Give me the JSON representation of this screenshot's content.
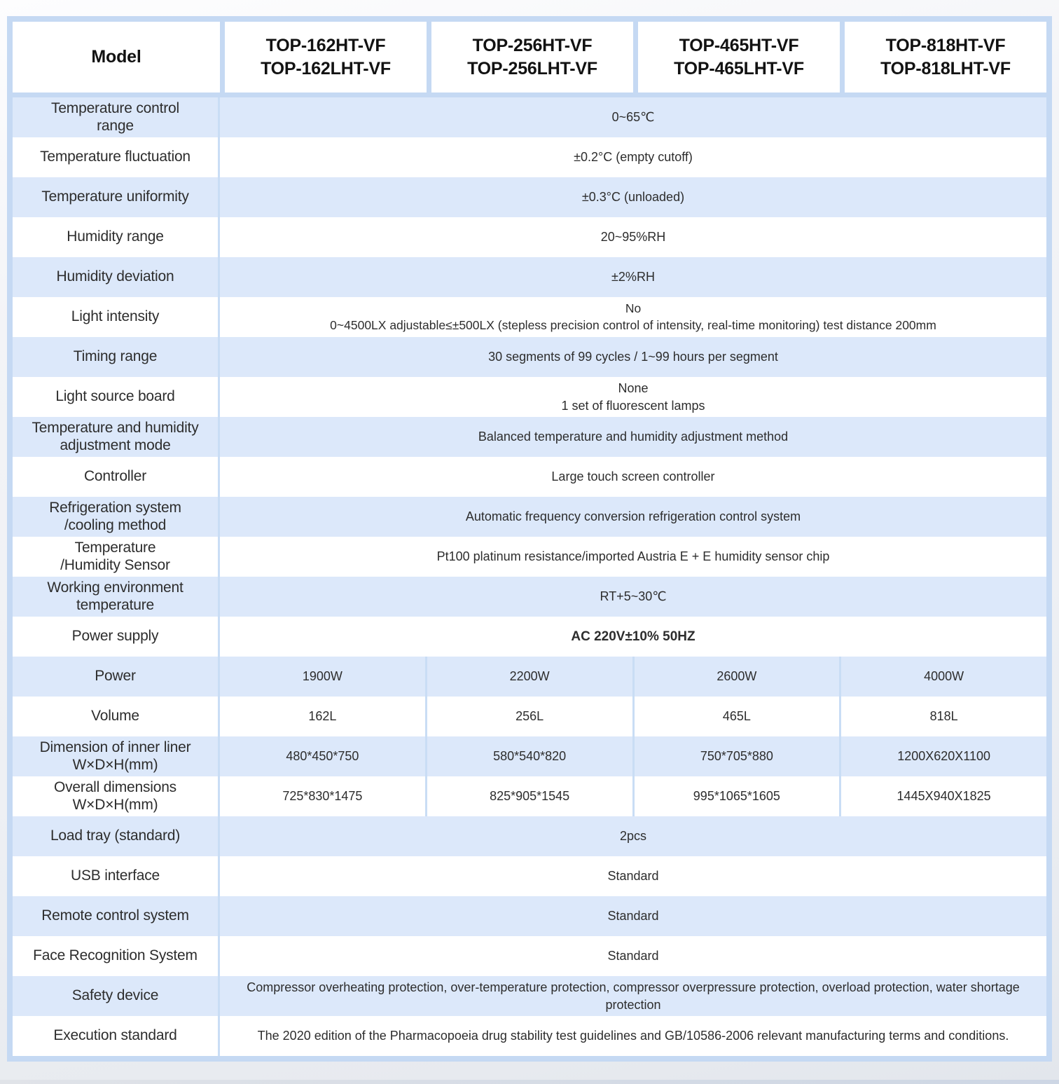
{
  "colors": {
    "frame_blue": "#c5d9f3",
    "row_blue": "#dce8fa",
    "separator_blue": "#c9ddf5",
    "cell_white": "#ffffff",
    "text_dark": "#2d2d2d"
  },
  "table": {
    "header": {
      "model_label": "Model",
      "models": [
        "TOP-162HT-VF\nTOP-162LHT-VF",
        "TOP-256HT-VF\nTOP-256LHT-VF",
        "TOP-465HT-VF\nTOP-465LHT-VF",
        "TOP-818HT-VF\nTOP-818LHT-VF"
      ]
    },
    "rows": [
      {
        "label": "Temperature control\nrange",
        "value": "0~65℃"
      },
      {
        "label": "Temperature fluctuation",
        "value": "±0.2°C (empty cutoff)"
      },
      {
        "label": "Temperature uniformity",
        "value": "±0.3°C (unloaded)"
      },
      {
        "label": "Humidity range",
        "value": "20~95%RH"
      },
      {
        "label": "Humidity deviation",
        "value": "±2%RH"
      },
      {
        "label": "Light intensity",
        "value": "No\n0~4500LX adjustable≤±500LX (stepless precision control of intensity, real-time monitoring) test distance 200mm"
      },
      {
        "label": "Timing range",
        "value": "30 segments of 99 cycles / 1~99 hours per segment"
      },
      {
        "label": "Light source board",
        "value": "None\n1 set of fluorescent lamps"
      },
      {
        "label": "Temperature and humidity\nadjustment mode",
        "value": "Balanced temperature and humidity adjustment method"
      },
      {
        "label": "Controller",
        "value": "Large touch screen controller"
      },
      {
        "label": "Refrigeration system\n/cooling method",
        "value": "Automatic frequency conversion refrigeration control system"
      },
      {
        "label": "Temperature\n/Humidity Sensor",
        "value": "Pt100 platinum resistance/imported Austria E + E humidity sensor chip"
      },
      {
        "label": "Working environment\ntemperature",
        "value": "RT+5~30℃"
      },
      {
        "label": "Power supply",
        "value": "AC 220V±10% 50HZ"
      },
      {
        "label": "Power",
        "values": [
          "1900W",
          "2200W",
          "2600W",
          "4000W"
        ]
      },
      {
        "label": "Volume",
        "values": [
          "162L",
          "256L",
          "465L",
          "818L"
        ]
      },
      {
        "label": "Dimension of inner liner\nW×D×H(mm)",
        "values": [
          "480*450*750",
          "580*540*820",
          "750*705*880",
          "1200X620X1100"
        ]
      },
      {
        "label": "Overall dimensions\nW×D×H(mm)",
        "values": [
          "725*830*1475",
          "825*905*1545",
          "995*1065*1605",
          "1445X940X1825"
        ]
      },
      {
        "label": "Load tray (standard)",
        "value": "2pcs"
      },
      {
        "label": "USB interface",
        "value": "Standard"
      },
      {
        "label": "Remote control system",
        "value": "Standard"
      },
      {
        "label": "Face Recognition System",
        "value": "Standard"
      },
      {
        "label": "Safety device",
        "value": "Compressor overheating protection, over-temperature protection, compressor overpressure protection, overload protection, water shortage protection"
      },
      {
        "label": "Execution standard",
        "value": "The 2020 edition of the Pharmacopoeia drug stability test guidelines and GB/10586-2006 relevant manufacturing terms and conditions."
      }
    ]
  }
}
